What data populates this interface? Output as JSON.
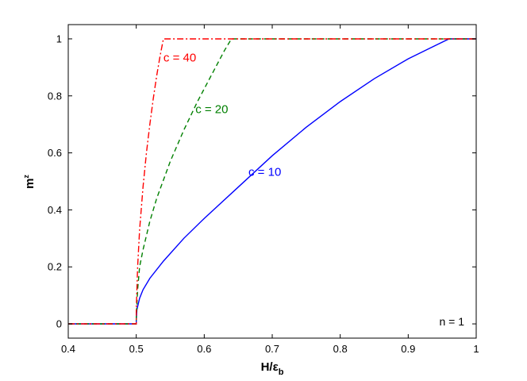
{
  "chart_data": {
    "type": "line",
    "xlabel": "H/ε",
    "xlabel_subscript": "b",
    "ylabel": "m",
    "ylabel_superscript": "z",
    "xlim": [
      0.4,
      1.0
    ],
    "ylim": [
      -0.05,
      1.05
    ],
    "x_ticks": [
      0.4,
      0.5,
      0.6,
      0.7,
      0.8,
      0.9,
      1.0
    ],
    "x_tick_labels": [
      "0.4",
      "0.5",
      "0.6",
      "0.7",
      "0.8",
      "0.9",
      "1"
    ],
    "y_ticks": [
      0,
      0.2,
      0.4,
      0.6,
      0.8,
      1.0
    ],
    "y_tick_labels": [
      "0",
      "0.2",
      "0.4",
      "0.6",
      "0.8",
      "1"
    ],
    "grid": false,
    "annotation": "n = 1",
    "series": [
      {
        "label": "c = 10",
        "color": "#0000ff",
        "style": "solid",
        "x": [
          0.4,
          0.5,
          0.5,
          0.501,
          0.505,
          0.51,
          0.52,
          0.54,
          0.57,
          0.6,
          0.65,
          0.7,
          0.75,
          0.8,
          0.85,
          0.9,
          0.93,
          0.96,
          1.0
        ],
        "y": [
          0,
          0,
          0.01,
          0.05,
          0.09,
          0.12,
          0.16,
          0.22,
          0.3,
          0.37,
          0.48,
          0.59,
          0.69,
          0.78,
          0.86,
          0.93,
          0.965,
          1.0,
          1.0
        ]
      },
      {
        "label": "c = 20",
        "color": "#008000",
        "style": "dashed",
        "x": [
          0.4,
          0.5,
          0.5,
          0.502,
          0.505,
          0.51,
          0.52,
          0.53,
          0.55,
          0.57,
          0.59,
          0.61,
          0.63,
          0.64,
          1.0
        ],
        "y": [
          0,
          0,
          0.02,
          0.12,
          0.2,
          0.26,
          0.36,
          0.44,
          0.57,
          0.68,
          0.78,
          0.87,
          0.96,
          1.0,
          1.0
        ]
      },
      {
        "label": "c = 40",
        "color": "#ff0000",
        "style": "dashdot",
        "x": [
          0.4,
          0.5,
          0.5,
          0.502,
          0.505,
          0.51,
          0.515,
          0.52,
          0.525,
          0.53,
          0.535,
          0.54,
          1.0
        ],
        "y": [
          0,
          0,
          0.05,
          0.2,
          0.33,
          0.48,
          0.6,
          0.7,
          0.79,
          0.87,
          0.94,
          1.0,
          1.0
        ]
      }
    ],
    "series_label_positions": [
      {
        "x": 0.665,
        "y": 0.52
      },
      {
        "x": 0.587,
        "y": 0.74
      },
      {
        "x": 0.54,
        "y": 0.92
      }
    ]
  }
}
